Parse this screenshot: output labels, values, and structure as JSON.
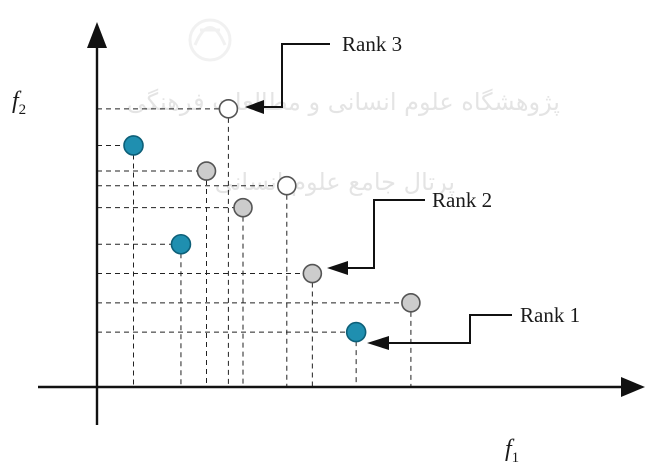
{
  "axes": {
    "x_label": "f",
    "x_subscript": "1",
    "y_label": "f",
    "y_subscript": "2"
  },
  "ranks": {
    "rank3_label": "Rank 3",
    "rank2_label": "Rank 2",
    "rank1_label": "Rank 1"
  },
  "points": [
    {
      "rank": 1,
      "f1": 1.0,
      "f2": 6.6
    },
    {
      "rank": 1,
      "f1": 2.3,
      "f2": 3.9
    },
    {
      "rank": 1,
      "f1": 7.1,
      "f2": 1.5
    },
    {
      "rank": 2,
      "f1": 3.0,
      "f2": 5.9
    },
    {
      "rank": 2,
      "f1": 4.0,
      "f2": 4.9
    },
    {
      "rank": 2,
      "f1": 5.9,
      "f2": 3.1
    },
    {
      "rank": 2,
      "f1": 8.6,
      "f2": 2.3
    },
    {
      "rank": 3,
      "f1": 3.6,
      "f2": 7.6
    },
    {
      "rank": 3,
      "f1": 5.2,
      "f2": 5.5
    }
  ],
  "colors": {
    "rank1_fill": "#1f8fb0",
    "rank2_fill": "#cccccc",
    "rank3_fill": "#ffffff",
    "guide_line": "#222222",
    "leader_line": "#e8a36a"
  },
  "watermark": {
    "line1": "پژوهشگاه علوم انسانی و مطالعات فرهنگی",
    "line2": "پرتال جامع علوم انسانی"
  }
}
